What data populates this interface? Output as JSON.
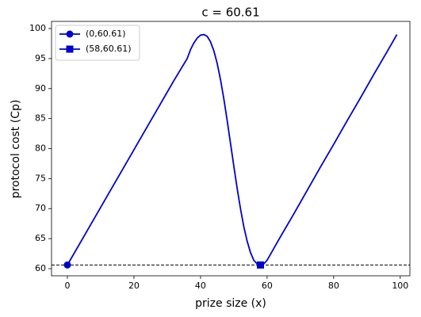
{
  "chart_data": {
    "type": "line",
    "title": "c = 60.61",
    "x_label": "prize size (x)",
    "y_label": "protocol cost (Cp)",
    "xlim": [
      -4.76,
      102.9
    ],
    "ylim": [
      58.81,
      101.19
    ],
    "xticks": [
      0,
      20,
      40,
      60,
      80,
      100
    ],
    "yticks": [
      60,
      65,
      70,
      75,
      80,
      85,
      90,
      95,
      100
    ],
    "hline": 60.61,
    "legend": "upper left",
    "series": [
      {
        "color": "#0000cc",
        "x": [
          0,
          4,
          8,
          12,
          16,
          20,
          24,
          28,
          32,
          36,
          37,
          38,
          39,
          40,
          41,
          42,
          43,
          44,
          45,
          46,
          47,
          48,
          49,
          50,
          51,
          52,
          53,
          54,
          55,
          56,
          57,
          58,
          59,
          60,
          64,
          68,
          72,
          76,
          80,
          84,
          88,
          92,
          96,
          99
        ],
        "values": [
          60.61,
          64.45,
          68.29,
          72.13,
          75.97,
          79.81,
          83.65,
          87.49,
          91.33,
          95.0,
          96.5,
          97.6,
          98.4,
          98.9,
          99.0,
          98.7,
          97.8,
          96.3,
          94.2,
          91.5,
          88.3,
          84.7,
          80.9,
          77.1,
          73.4,
          70.0,
          67.0,
          64.6,
          62.7,
          61.4,
          60.8,
          60.61,
          60.8,
          61.4,
          65.3,
          69.1,
          73.0,
          76.9,
          80.7,
          84.6,
          88.4,
          92.3,
          96.1,
          99.0
        ]
      },
      {
        "name": "(0,60.61)",
        "color": "#0000cc",
        "marker": "circle",
        "x": [
          0
        ],
        "values": [
          60.61
        ]
      },
      {
        "name": "(58,60.61)",
        "color": "#0000cc",
        "marker": "square",
        "x": [
          58
        ],
        "values": [
          60.61
        ]
      }
    ]
  }
}
